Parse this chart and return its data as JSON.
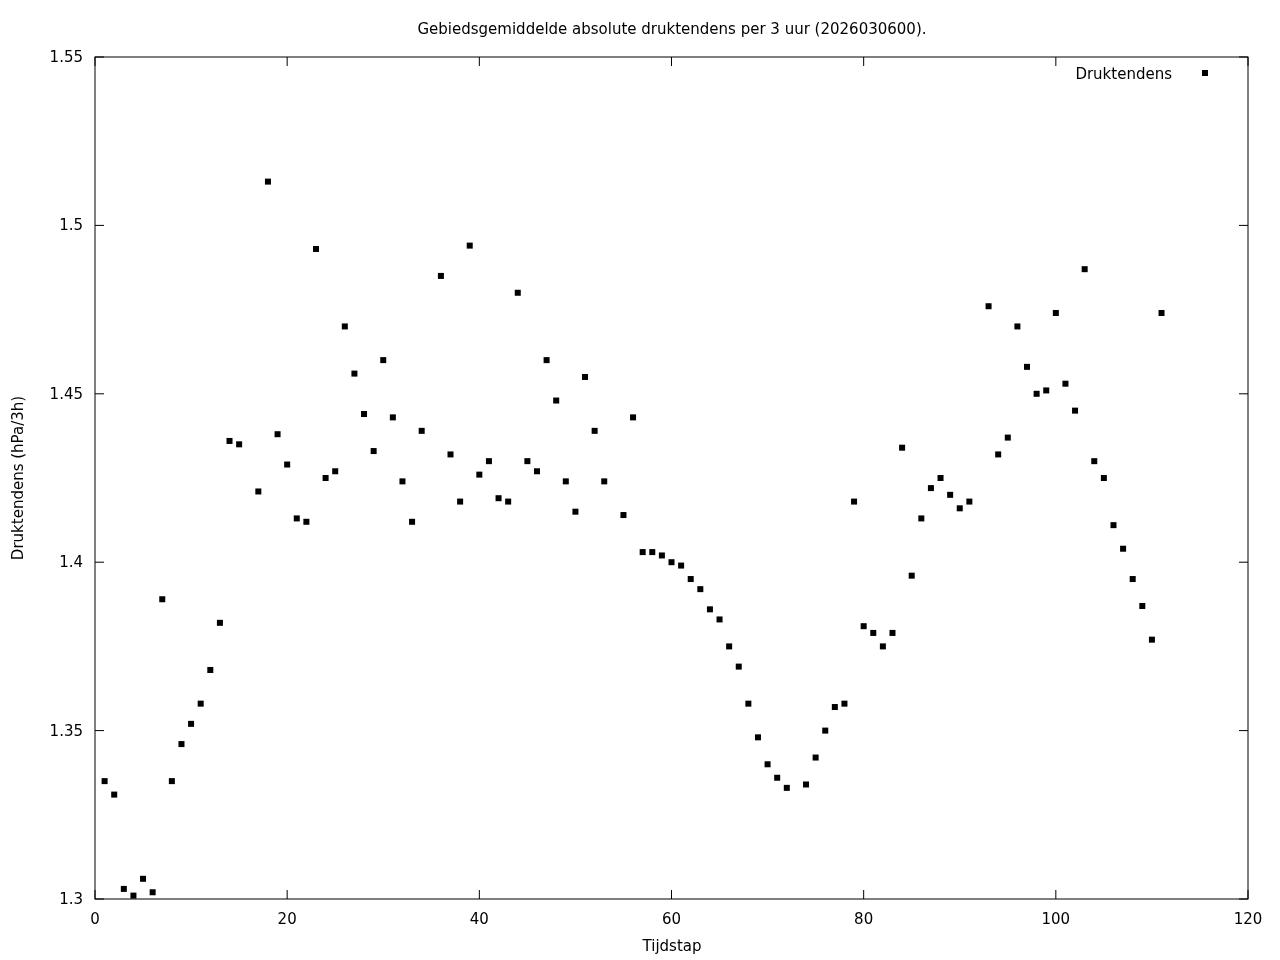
{
  "chart_data": {
    "type": "scatter",
    "title": "Gebiedsgemiddelde absolute druktendens per 3 uur (2026030600).",
    "xlabel": "Tijdstap",
    "ylabel": "Druktendens (hPa/3h)",
    "x": [
      1,
      2,
      3,
      4,
      5,
      6,
      7,
      8,
      9,
      10,
      11,
      12,
      13,
      14,
      15,
      17,
      18,
      19,
      20,
      21,
      22,
      23,
      24,
      25,
      26,
      27,
      28,
      29,
      30,
      31,
      32,
      33,
      34,
      36,
      37,
      38,
      39,
      40,
      41,
      42,
      43,
      44,
      45,
      46,
      47,
      48,
      49,
      50,
      51,
      52,
      53,
      55,
      56,
      57,
      58,
      59,
      60,
      61,
      62,
      63,
      64,
      65,
      66,
      67,
      68,
      69,
      70,
      71,
      72,
      74,
      75,
      76,
      77,
      78,
      79,
      80,
      81,
      82,
      83,
      84,
      85,
      86,
      87,
      88,
      89,
      90,
      91,
      93,
      94,
      95,
      96,
      97,
      98,
      99,
      100,
      101,
      102,
      103,
      104,
      105,
      106,
      107,
      108,
      109,
      110,
      111
    ],
    "series": [
      {
        "name": "Druktendens",
        "color": "#000000",
        "values": [
          1.335,
          1.331,
          1.303,
          1.301,
          1.306,
          1.302,
          1.389,
          1.335,
          1.346,
          1.352,
          1.358,
          1.368,
          1.382,
          1.436,
          1.435,
          1.421,
          1.513,
          1.438,
          1.429,
          1.413,
          1.412,
          1.493,
          1.425,
          1.427,
          1.47,
          1.456,
          1.444,
          1.433,
          1.46,
          1.443,
          1.424,
          1.412,
          1.439,
          1.485,
          1.432,
          1.418,
          1.494,
          1.426,
          1.43,
          1.419,
          1.418,
          1.48,
          1.43,
          1.427,
          1.46,
          1.448,
          1.424,
          1.415,
          1.455,
          1.439,
          1.424,
          1.414,
          1.443,
          1.403,
          1.403,
          1.402,
          1.4,
          1.399,
          1.395,
          1.392,
          1.386,
          1.383,
          1.375,
          1.369,
          1.358,
          1.348,
          1.34,
          1.336,
          1.333,
          1.334,
          1.342,
          1.35,
          1.357,
          1.358,
          1.418,
          1.381,
          1.379,
          1.375,
          1.379,
          1.434,
          1.396,
          1.413,
          1.422,
          1.425,
          1.42,
          1.416,
          1.418,
          1.476,
          1.432,
          1.437,
          1.47,
          1.458,
          1.45,
          1.451,
          1.474,
          1.453,
          1.445,
          1.487,
          1.43,
          1.425,
          1.411,
          1.404,
          1.395,
          1.387,
          1.377,
          1.474
        ]
      }
    ],
    "xlim": [
      0,
      120
    ],
    "xticks": [
      0,
      20,
      40,
      60,
      80,
      100,
      120
    ],
    "ylim": [
      1.3,
      1.55
    ],
    "yticks": [
      1.3,
      1.35,
      1.4,
      1.45,
      1.5,
      1.55
    ],
    "marker": "square",
    "legend": "top right",
    "grid": false
  }
}
